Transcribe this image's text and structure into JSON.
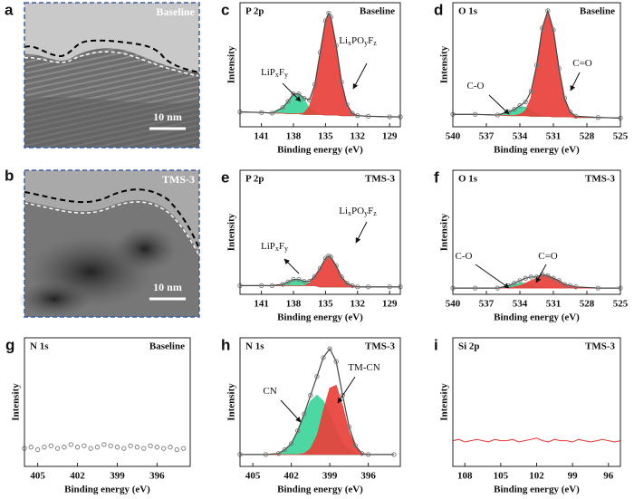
{
  "images": [
    {
      "panel": "a",
      "label": "Baseline",
      "scale_bar": "10 nm"
    },
    {
      "panel": "b",
      "label": "TMS-3",
      "scale_bar": "10 nm"
    }
  ],
  "chart_data": [
    {
      "type": "area",
      "panel": "c",
      "title": "P 2p",
      "sample": "Baseline",
      "xlabel": "Binding energy (eV)",
      "ylabel": "Intensity",
      "annotations": [
        {
          "parts": [
            "LiP",
            "x",
            "F",
            "y"
          ]
        },
        {
          "parts": [
            "Li",
            "x",
            "PO",
            "y",
            "F",
            "z"
          ]
        }
      ],
      "xlim": [
        143,
        128
      ],
      "xticks": [
        141,
        138,
        135,
        132,
        129
      ],
      "ylim": [
        0,
        1
      ],
      "x": [
        143,
        141,
        140,
        139,
        138.5,
        138,
        137.5,
        137,
        136.5,
        136,
        135.5,
        135,
        134.7,
        134.5,
        134,
        133.5,
        133,
        132.5,
        132,
        131,
        129,
        128
      ],
      "series": [
        {
          "style": "line",
          "color": "#555555",
          "values": [
            0.12,
            0.115,
            0.11,
            0.11,
            0.105,
            0.105,
            0.105,
            0.1,
            0.1,
            0.1,
            0.1,
            0.095,
            0.095,
            0.095,
            0.095,
            0.09,
            0.09,
            0.09,
            0.09,
            0.085,
            0.08,
            0.08
          ]
        },
        {
          "style": "fill",
          "color": "#3ed49a",
          "values": [
            0,
            0,
            0,
            0.045,
            0.1,
            0.16,
            0.16,
            0.12,
            0.05,
            0.02,
            0,
            0,
            0,
            0,
            0,
            0,
            0,
            0,
            0,
            0,
            0,
            0
          ]
        },
        {
          "style": "fill",
          "color": "#e8403a",
          "values": [
            0,
            0,
            0,
            0,
            0,
            0,
            0,
            0.01,
            0.065,
            0.22,
            0.5,
            0.76,
            0.82,
            0.79,
            0.56,
            0.27,
            0.09,
            0.02,
            0,
            0,
            0,
            0
          ]
        },
        {
          "style": "points",
          "color": "#777777",
          "values": [
            0.12,
            0.115,
            0.11,
            0.155,
            0.205,
            0.265,
            0.265,
            0.23,
            0.215,
            0.34,
            0.6,
            0.855,
            0.915,
            0.885,
            0.655,
            0.36,
            0.18,
            0.11,
            0.09,
            0.085,
            0.08,
            0.08
          ]
        }
      ]
    },
    {
      "type": "area",
      "panel": "d",
      "title": "O 1s",
      "sample": "Baseline",
      "xlabel": "Binding energy (eV)",
      "ylabel": "Intensity",
      "annotations": [
        {
          "parts": [
            "C-O"
          ]
        },
        {
          "parts": [
            "C=O"
          ]
        }
      ],
      "xlim": [
        540,
        525
      ],
      "xticks": [
        540,
        537,
        534,
        531,
        528,
        525
      ],
      "ylim": [
        0,
        1
      ],
      "x": [
        540,
        538,
        536,
        535,
        534.5,
        534,
        533.5,
        533,
        532.5,
        532,
        531.5,
        531,
        530.5,
        530,
        529.5,
        529,
        527,
        525
      ],
      "series": [
        {
          "style": "line",
          "color": "#555555",
          "values": [
            0.1,
            0.1,
            0.095,
            0.09,
            0.09,
            0.09,
            0.09,
            0.085,
            0.085,
            0.085,
            0.085,
            0.08,
            0.08,
            0.08,
            0.08,
            0.075,
            0.075,
            0.07
          ]
        },
        {
          "style": "fill",
          "color": "#3ed49a",
          "values": [
            0,
            0,
            0,
            0.03,
            0.05,
            0.07,
            0.07,
            0.05,
            0.02,
            0.01,
            0,
            0,
            0,
            0,
            0,
            0,
            0,
            0
          ]
        },
        {
          "style": "fill",
          "color": "#e8403a",
          "values": [
            0,
            0,
            0,
            0,
            0,
            0.01,
            0.04,
            0.15,
            0.39,
            0.7,
            0.85,
            0.7,
            0.39,
            0.15,
            0.04,
            0.01,
            0,
            0
          ]
        },
        {
          "style": "points",
          "color": "#777777",
          "values": [
            0.1,
            0.1,
            0.095,
            0.12,
            0.14,
            0.17,
            0.2,
            0.285,
            0.495,
            0.795,
            0.935,
            0.78,
            0.47,
            0.23,
            0.12,
            0.085,
            0.075,
            0.07
          ]
        }
      ]
    },
    {
      "type": "area",
      "panel": "e",
      "title": "P 2p",
      "sample": "TMS-3",
      "xlabel": "Binding energy (eV)",
      "ylabel": "Intensity",
      "annotations": [
        {
          "parts": [
            "LiP",
            "x",
            "F",
            "y"
          ]
        },
        {
          "parts": [
            "Li",
            "x",
            "PO",
            "y",
            "F",
            "z"
          ]
        }
      ],
      "xlim": [
        143,
        128
      ],
      "xticks": [
        141,
        138,
        135,
        132,
        129
      ],
      "ylim": [
        0,
        1
      ],
      "x": [
        143,
        141,
        140,
        139,
        138.5,
        138,
        137.5,
        137,
        136.5,
        136,
        135.5,
        135,
        134.7,
        134.5,
        134,
        133.5,
        133,
        132.5,
        132,
        131,
        129,
        128
      ],
      "series": [
        {
          "style": "line",
          "color": "#555555",
          "values": [
            0.07,
            0.07,
            0.07,
            0.07,
            0.07,
            0.07,
            0.07,
            0.07,
            0.07,
            0.07,
            0.06,
            0.06,
            0.06,
            0.06,
            0.06,
            0.06,
            0.06,
            0.06,
            0.06,
            0.06,
            0.06,
            0.06
          ]
        },
        {
          "style": "fill",
          "color": "#3ed49a",
          "values": [
            0,
            0,
            0,
            0.01,
            0.03,
            0.05,
            0.05,
            0.035,
            0.015,
            0.005,
            0,
            0,
            0,
            0,
            0,
            0,
            0,
            0,
            0,
            0,
            0,
            0
          ]
        },
        {
          "style": "fill",
          "color": "#e8403a",
          "values": [
            0,
            0,
            0,
            0,
            0,
            0,
            0,
            0,
            0.02,
            0.07,
            0.15,
            0.23,
            0.25,
            0.24,
            0.17,
            0.08,
            0.03,
            0.01,
            0,
            0,
            0,
            0
          ]
        },
        {
          "style": "points",
          "color": "#777777",
          "values": [
            0.07,
            0.07,
            0.07,
            0.08,
            0.1,
            0.12,
            0.12,
            0.105,
            0.105,
            0.145,
            0.21,
            0.29,
            0.31,
            0.3,
            0.23,
            0.14,
            0.09,
            0.07,
            0.06,
            0.06,
            0.06,
            0.06
          ]
        }
      ]
    },
    {
      "type": "area",
      "panel": "f",
      "title": "O 1s",
      "sample": "TMS-3",
      "xlabel": "Binding energy (eV)",
      "ylabel": "Intensity",
      "annotations": [
        {
          "parts": [
            "C-O"
          ]
        },
        {
          "parts": [
            "C=O"
          ]
        }
      ],
      "xlim": [
        540,
        525
      ],
      "xticks": [
        540,
        537,
        534,
        531,
        528,
        525
      ],
      "ylim": [
        0,
        1
      ],
      "x": [
        540,
        538,
        536,
        535,
        534.5,
        534,
        533.5,
        533,
        532.5,
        532,
        531.5,
        531,
        530.5,
        530,
        529.5,
        529,
        527,
        525
      ],
      "series": [
        {
          "style": "line",
          "color": "#555555",
          "values": [
            0.05,
            0.05,
            0.05,
            0.05,
            0.05,
            0.05,
            0.05,
            0.05,
            0.05,
            0.05,
            0.05,
            0.05,
            0.05,
            0.05,
            0.05,
            0.05,
            0.05,
            0.05
          ]
        },
        {
          "style": "fill",
          "color": "#3ed49a",
          "values": [
            0,
            0,
            0,
            0.02,
            0.03,
            0.04,
            0.04,
            0.03,
            0.01,
            0.01,
            0,
            0,
            0,
            0,
            0,
            0,
            0,
            0
          ]
        },
        {
          "style": "fill",
          "color": "#e8403a",
          "values": [
            0,
            0,
            0,
            0,
            0.01,
            0.02,
            0.04,
            0.06,
            0.08,
            0.1,
            0.1,
            0.08,
            0.06,
            0.03,
            0.02,
            0.01,
            0,
            0
          ]
        },
        {
          "style": "points",
          "color": "#777777",
          "values": [
            0.05,
            0.05,
            0.05,
            0.07,
            0.09,
            0.11,
            0.13,
            0.14,
            0.14,
            0.16,
            0.15,
            0.13,
            0.11,
            0.08,
            0.07,
            0.06,
            0.05,
            0.05
          ]
        }
      ]
    },
    {
      "type": "scatter",
      "panel": "g",
      "title": "N 1s",
      "sample": "Baseline",
      "xlabel": "Binding energy (eV)",
      "ylabel": "Intensity",
      "annotations": [],
      "xlim": [
        406,
        393.5
      ],
      "xticks": [
        405,
        402,
        399,
        396
      ],
      "ylim": [
        0,
        1
      ],
      "x": [
        406,
        405.5,
        405,
        404.5,
        404,
        403.5,
        403,
        402.5,
        402,
        401.5,
        401,
        400.5,
        400,
        399.5,
        399,
        398.5,
        398,
        397.5,
        397,
        396.5,
        396,
        395.5,
        395,
        394.5,
        394
      ],
      "series": [
        {
          "style": "points",
          "color": "#777777",
          "values": [
            0.14,
            0.15,
            0.13,
            0.15,
            0.16,
            0.14,
            0.15,
            0.17,
            0.15,
            0.16,
            0.14,
            0.15,
            0.17,
            0.16,
            0.15,
            0.14,
            0.16,
            0.15,
            0.14,
            0.16,
            0.15,
            0.14,
            0.15,
            0.13,
            0.14
          ]
        }
      ]
    },
    {
      "type": "area",
      "panel": "h",
      "title": "N 1s",
      "sample": "TMS-3",
      "xlabel": "Binding energy (eV)",
      "ylabel": "Intensity",
      "annotations": [
        {
          "parts": [
            "CN"
          ]
        },
        {
          "parts": [
            "TM-CN"
          ]
        }
      ],
      "xlim": [
        406,
        393.5
      ],
      "xticks": [
        405,
        402,
        399,
        396
      ],
      "ylim": [
        0,
        1.3
      ],
      "x": [
        406,
        404,
        403,
        402.5,
        402,
        401.5,
        401,
        400.5,
        400,
        399.5,
        399,
        398.5,
        398,
        397.5,
        397,
        396.5,
        396,
        394
      ],
      "series": [
        {
          "style": "line",
          "color": "#555555",
          "values": [
            0.12,
            0.12,
            0.12,
            0.12,
            0.12,
            0.12,
            0.12,
            0.12,
            0.12,
            0.12,
            0.12,
            0.12,
            0.12,
            0.12,
            0.12,
            0.12,
            0.12,
            0.12
          ]
        },
        {
          "style": "fill",
          "color": "#3ed49a",
          "values": [
            0,
            0,
            0.01,
            0.05,
            0.11,
            0.24,
            0.4,
            0.54,
            0.6,
            0.54,
            0.4,
            0.24,
            0.11,
            0.05,
            0.01,
            0,
            0,
            0
          ]
        },
        {
          "style": "fill",
          "color": "#e8403a",
          "values": [
            0,
            0,
            0,
            0,
            0,
            0,
            0.01,
            0.06,
            0.19,
            0.44,
            0.67,
            0.7,
            0.49,
            0.23,
            0.08,
            0.01,
            0,
            0
          ]
        },
        {
          "style": "points",
          "color": "#777777",
          "values": [
            0.12,
            0.12,
            0.13,
            0.17,
            0.23,
            0.36,
            0.53,
            0.72,
            0.91,
            1.1,
            1.19,
            1.06,
            0.72,
            0.4,
            0.21,
            0.13,
            0.12,
            0.12
          ]
        }
      ]
    },
    {
      "type": "line",
      "panel": "i",
      "title": "Si 2p",
      "sample": "TMS-3",
      "xlabel": "Binding energy (eV)",
      "ylabel": "Intensity",
      "annotations": [],
      "xlim": [
        109,
        95
      ],
      "xticks": [
        108,
        105,
        102,
        99,
        96
      ],
      "ylim": [
        0,
        1
      ],
      "x": [
        109,
        108.5,
        108,
        107.5,
        107,
        106.5,
        106,
        105.5,
        105,
        104.5,
        104,
        103.5,
        103,
        102.5,
        102,
        101.5,
        101,
        100.5,
        100,
        99.5,
        99,
        98.5,
        98,
        97.5,
        97,
        96.5,
        96,
        95.5,
        95
      ],
      "series": [
        {
          "style": "line",
          "color": "#e53935",
          "values": [
            0.2,
            0.21,
            0.19,
            0.2,
            0.21,
            0.2,
            0.19,
            0.21,
            0.2,
            0.2,
            0.21,
            0.19,
            0.2,
            0.21,
            0.22,
            0.2,
            0.19,
            0.21,
            0.2,
            0.2,
            0.19,
            0.21,
            0.2,
            0.19,
            0.2,
            0.21,
            0.2,
            0.19,
            0.2
          ]
        }
      ]
    }
  ]
}
